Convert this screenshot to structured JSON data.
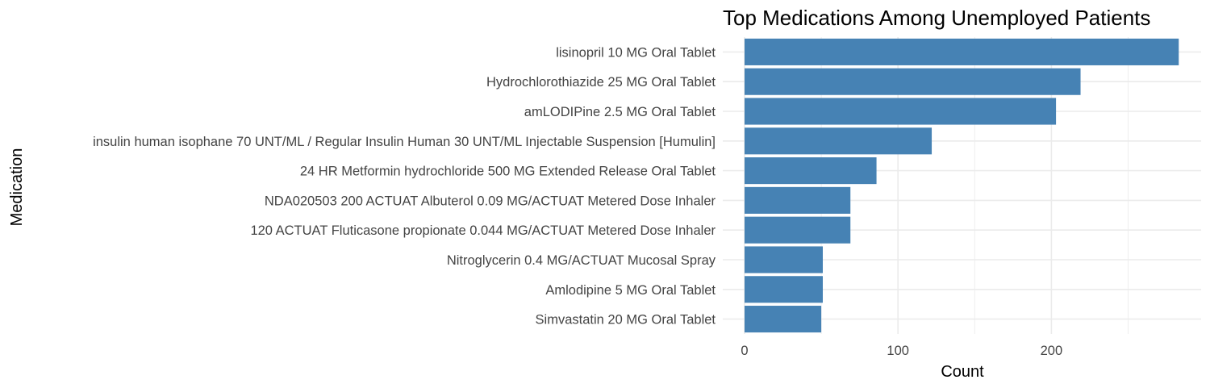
{
  "chart_data": {
    "type": "bar",
    "orientation": "horizontal",
    "title": "Top Medications Among Unemployed Patients",
    "xlabel": "Count",
    "ylabel": "Medication",
    "xlim": [
      0,
      285
    ],
    "x_ticks": [
      0,
      100,
      200
    ],
    "x_minor_ticks": [
      50,
      150,
      250
    ],
    "grid": true,
    "bar_color": "#4682B4",
    "categories": [
      "lisinopril 10 MG Oral Tablet",
      "Hydrochlorothiazide 25 MG Oral Tablet",
      "amLODIPine 2.5 MG Oral Tablet",
      "insulin human  isophane 70 UNT/ML / Regular Insulin  Human 30 UNT/ML Injectable Suspension [Humulin]",
      "24 HR Metformin hydrochloride 500 MG Extended Release Oral Tablet",
      "NDA020503 200 ACTUAT Albuterol 0.09 MG/ACTUAT Metered Dose Inhaler",
      "120 ACTUAT Fluticasone propionate 0.044 MG/ACTUAT Metered Dose Inhaler",
      "Nitroglycerin 0.4 MG/ACTUAT Mucosal Spray",
      "Amlodipine 5 MG Oral Tablet",
      "Simvastatin 20 MG Oral Tablet"
    ],
    "values": [
      283,
      219,
      203,
      122,
      86,
      69,
      69,
      51,
      51,
      50
    ]
  }
}
